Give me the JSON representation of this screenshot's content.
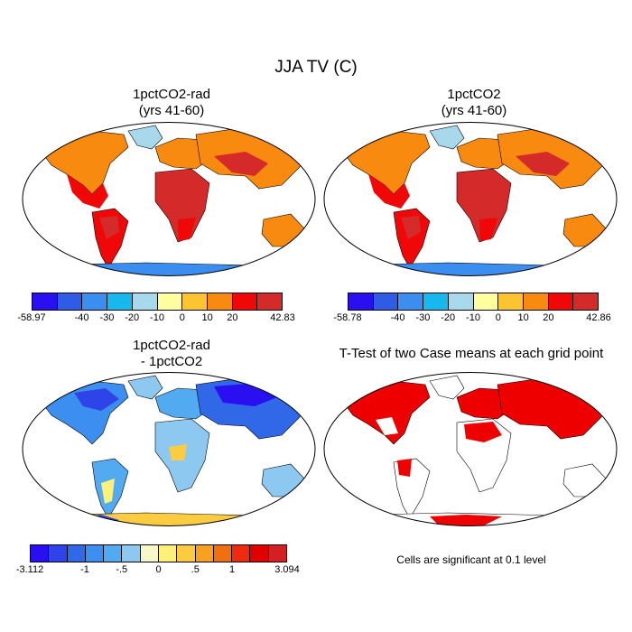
{
  "title": "JJA TV (C)",
  "panels": {
    "top_left": {
      "title_line1": "1pctCO2-rad",
      "title_line2": "(yrs 41-60)"
    },
    "top_right": {
      "title_line1": "1pctCO2",
      "title_line2": "(yrs 41-60)"
    },
    "bottom_left": {
      "title_line1": "1pctCO2-rad",
      "title_line2": "- 1pctCO2"
    },
    "bottom_right": {
      "title": "T-Test of two Case means at each grid point"
    }
  },
  "colorbar_top_left": {
    "colors": [
      "#2a0ff0",
      "#2f5be6",
      "#3b8ef0",
      "#16b8ee",
      "#a8d8ec",
      "#ffffa0",
      "#fcc430",
      "#f88a10",
      "#f00808",
      "#d42a2a"
    ],
    "labels": [
      "-58.97",
      "-40",
      "-30",
      "-20",
      "-10",
      "0",
      "10",
      "20",
      "42.83"
    ]
  },
  "colorbar_top_right": {
    "colors": [
      "#2a0ff0",
      "#2f5be6",
      "#3b8ef0",
      "#16b8ee",
      "#a8d8ec",
      "#ffffa0",
      "#fcc430",
      "#f88a10",
      "#f00808",
      "#d42a2a"
    ],
    "labels": [
      "-58.78",
      "-40",
      "-30",
      "-20",
      "-10",
      "0",
      "10",
      "20",
      "42.86"
    ]
  },
  "colorbar_bottom_left": {
    "colors": [
      "#2a0ff0",
      "#2e44e8",
      "#3168e8",
      "#3c8ff0",
      "#52aaf0",
      "#8cc8f0",
      "#f8f8c8",
      "#fff07a",
      "#fccc40",
      "#f8a020",
      "#f07010",
      "#f02a10",
      "#e00000",
      "#d42020"
    ],
    "labels": [
      "-3.112",
      "-1",
      "-.5",
      "0",
      ".5",
      "1",
      "3.094"
    ]
  },
  "significance_note": "Cells are significant at 0.1 level",
  "colors": {
    "land_outline": "#000000",
    "ocean": "#ffffff",
    "significant": "#ee0000"
  }
}
